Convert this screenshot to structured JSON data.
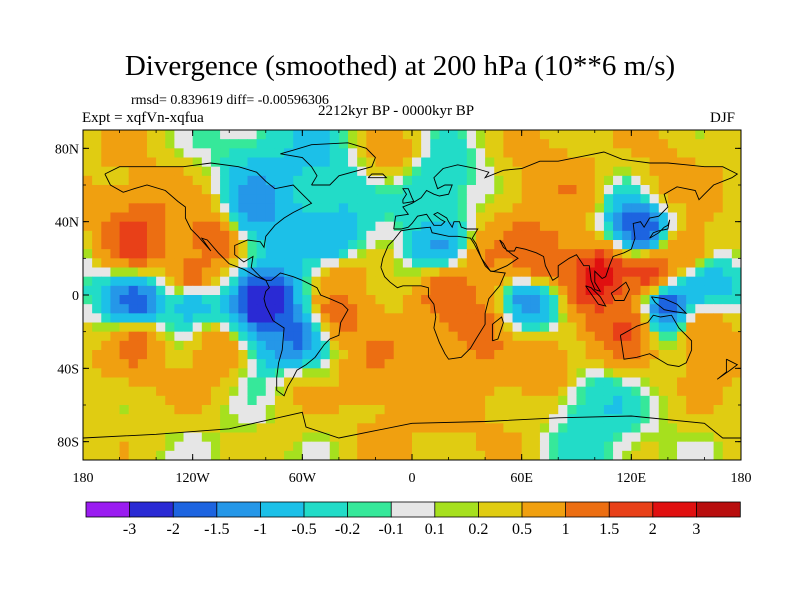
{
  "chart_data": {
    "type": "heatmap",
    "title": "Divergence (smoothed) at 200 hPa (10**6 m/s)",
    "stats_text": "rmsd= 0.839619 diff= -0.00596306",
    "experiment_text": "Expt = xqfVn-xqfua",
    "period_text": "2212kyr BP - 0000kyr BP",
    "season_text": "DJF",
    "x_range": [
      -180,
      180
    ],
    "y_range": [
      -90,
      90
    ],
    "x_ticks": [
      {
        "value": -180,
        "label": "180"
      },
      {
        "value": -120,
        "label": "120W"
      },
      {
        "value": -60,
        "label": "60W"
      },
      {
        "value": 0,
        "label": "0"
      },
      {
        "value": 60,
        "label": "60E"
      },
      {
        "value": 120,
        "label": "120E"
      },
      {
        "value": 180,
        "label": "180"
      }
    ],
    "y_ticks": [
      {
        "value": 80,
        "label": "80N"
      },
      {
        "value": 40,
        "label": "40N"
      },
      {
        "value": 0,
        "label": "0"
      },
      {
        "value": -40,
        "label": "40S"
      },
      {
        "value": -80,
        "label": "80S"
      }
    ],
    "colorbar": {
      "levels": [
        -3,
        -2,
        -1.5,
        -1,
        -0.5,
        -0.2,
        -0.1,
        0.1,
        0.2,
        0.5,
        1,
        1.5,
        2,
        3
      ],
      "labels": [
        "-3",
        "-2",
        "-1.5",
        "-1",
        "-0.5",
        "-0.2",
        "-0.1",
        "0.1",
        "0.2",
        "0.5",
        "1",
        "1.5",
        "2",
        "3"
      ],
      "colors": [
        "#9a1cf0",
        "#2a2ad4",
        "#1d64e0",
        "#2597e8",
        "#1cc0e8",
        "#22dcc8",
        "#36e89a",
        "#e6e6e6",
        "#a6e01e",
        "#e0cc12",
        "#f0a010",
        "#ec6e12",
        "#e84018",
        "#e01010",
        "#b80e0e"
      ]
    },
    "field_features": [
      {
        "lon": -150,
        "lat": 28,
        "value": 1.6
      },
      {
        "lon": -110,
        "lat": 30,
        "value": 1.4
      },
      {
        "lon": -85,
        "lat": 45,
        "value": -1.2
      },
      {
        "lon": -40,
        "lat": 30,
        "value": -0.8
      },
      {
        "lon": -50,
        "lat": 60,
        "value": -0.6
      },
      {
        "lon": -150,
        "lat": -5,
        "value": -1.8
      },
      {
        "lon": -120,
        "lat": -2,
        "value": -1.2
      },
      {
        "lon": -80,
        "lat": -5,
        "value": -2.6
      },
      {
        "lon": -65,
        "lat": -20,
        "value": -1.6
      },
      {
        "lon": -150,
        "lat": -25,
        "value": 1.2
      },
      {
        "lon": -110,
        "lat": -30,
        "value": 0.9
      },
      {
        "lon": -120,
        "lat": 10,
        "value": 1.5
      },
      {
        "lon": -40,
        "lat": -10,
        "value": 1.3
      },
      {
        "lon": -35,
        "lat": 10,
        "value": 0.8
      },
      {
        "lon": -20,
        "lat": -40,
        "value": 0.9
      },
      {
        "lon": 15,
        "lat": 25,
        "value": -1.0
      },
      {
        "lon": 20,
        "lat": 5,
        "value": 1.2
      },
      {
        "lon": 40,
        "lat": 15,
        "value": 1.0
      },
      {
        "lon": 35,
        "lat": -15,
        "value": 1.3
      },
      {
        "lon": 65,
        "lat": -5,
        "value": -1.3
      },
      {
        "lon": 70,
        "lat": 20,
        "value": 1.5
      },
      {
        "lon": 105,
        "lat": 10,
        "value": 2.4
      },
      {
        "lon": 130,
        "lat": 10,
        "value": 2.2
      },
      {
        "lon": 125,
        "lat": 35,
        "value": -2.4
      },
      {
        "lon": 150,
        "lat": 25,
        "value": 1.2
      },
      {
        "lon": 160,
        "lat": 5,
        "value": -1.1
      },
      {
        "lon": 140,
        "lat": -5,
        "value": -2.2
      },
      {
        "lon": 115,
        "lat": -15,
        "value": 1.6
      },
      {
        "lon": 160,
        "lat": -20,
        "value": 1.2
      },
      {
        "lon": 70,
        "lat": -35,
        "value": 0.9
      },
      {
        "lon": 10,
        "lat": 60,
        "value": -0.6
      },
      {
        "lon": 80,
        "lat": 55,
        "value": 0.8
      },
      {
        "lon": 140,
        "lat": 60,
        "value": 0.7
      },
      {
        "lon": -10,
        "lat": 75,
        "value": 0.6
      },
      {
        "lon": -60,
        "lat": -55,
        "value": 0.4
      },
      {
        "lon": 100,
        "lat": -60,
        "value": -0.5
      }
    ]
  }
}
